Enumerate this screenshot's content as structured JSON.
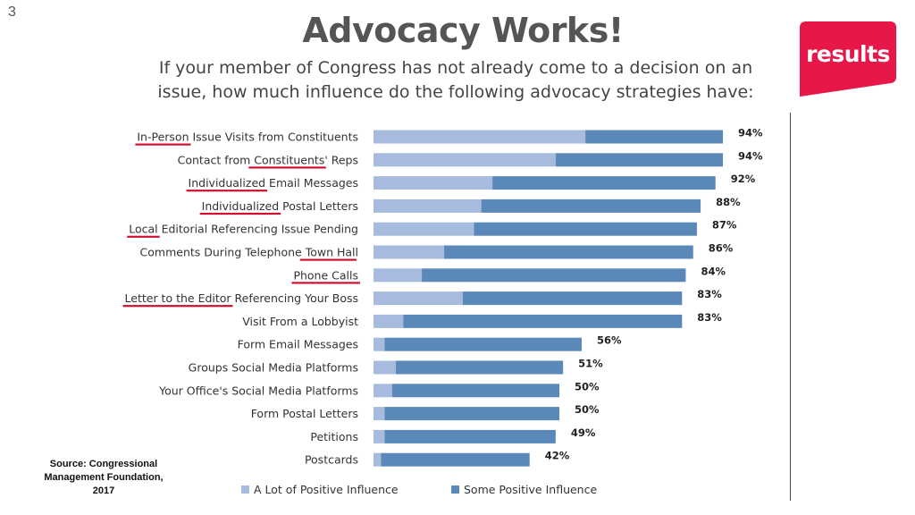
{
  "slide": {
    "number": "3",
    "title": "Advocacy Works!",
    "subtitle": "If your member of Congress has not already come to a decision on an issue, how much influence do the following advocacy strategies have:"
  },
  "logo": {
    "text": "results",
    "color": "#e8174a"
  },
  "source": {
    "text": "Source: Congressional Management Foundation, 2017"
  },
  "chart_data": {
    "type": "bar",
    "orientation": "horizontal",
    "stacked": true,
    "xlim": [
      0,
      100
    ],
    "grid": false,
    "legend_placement": "bottom",
    "categories": [
      "In-Person Issue Visits from Constituents",
      "Contact from Constituents' Reps",
      "Individualized Email Messages",
      "Individualized Postal Letters",
      "Local Editorial Referencing Issue Pending",
      "Comments During Telephone Town Hall",
      "Phone Calls",
      "Letter to the Editor Referencing Your Boss",
      "Visit From a Lobbyist",
      "Form Email Messages",
      "Groups Social Media Platforms",
      "Your Office's Social Media Platforms",
      "Form Postal Letters",
      "Petitions",
      "Postcards"
    ],
    "series": [
      {
        "name": "A Lot of Positive Influence",
        "color": "#a6bbdd",
        "values": [
          57,
          49,
          32,
          29,
          27,
          19,
          13,
          24,
          8,
          3,
          6,
          5,
          3,
          3,
          2
        ]
      },
      {
        "name": "Some Positive Influence",
        "color": "#5a88b8",
        "values": [
          37,
          45,
          60,
          59,
          60,
          67,
          71,
          59,
          75,
          53,
          45,
          45,
          47,
          46,
          40
        ]
      }
    ],
    "totals": [
      "94%",
      "94%",
      "92%",
      "88%",
      "87%",
      "86%",
      "84%",
      "83%",
      "83%",
      "56%",
      "51%",
      "50%",
      "50%",
      "49%",
      "42%"
    ],
    "underlines": [
      {
        "row": 0,
        "text": "In-Person"
      },
      {
        "row": 1,
        "text": "Constituents'"
      },
      {
        "row": 2,
        "text": "Individualized"
      },
      {
        "row": 3,
        "text": "Individualized"
      },
      {
        "row": 4,
        "text": "Local"
      },
      {
        "row": 5,
        "text": "Town Hall"
      },
      {
        "row": 6,
        "text": "Phone Calls"
      },
      {
        "row": 7,
        "text": "Letter to the Editor"
      }
    ],
    "underline_color": "#d0102e"
  }
}
